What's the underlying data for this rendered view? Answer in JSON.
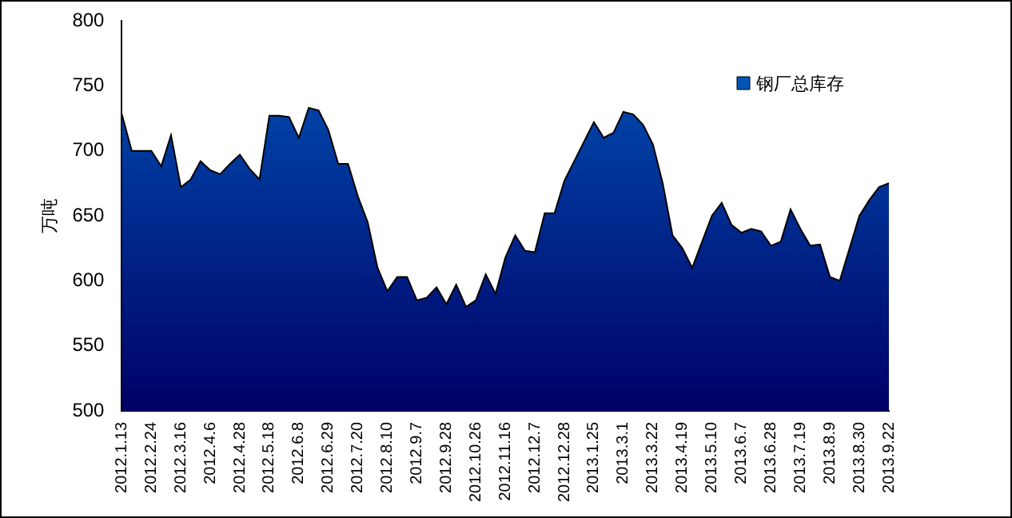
{
  "chart_data": {
    "type": "area",
    "ylabel": "万吨",
    "ylim": [
      500,
      800
    ],
    "yticks": [
      500,
      550,
      600,
      650,
      700,
      750,
      800
    ],
    "grid": false,
    "legend": "top right",
    "categories": [
      "2012.1.13",
      null,
      null,
      "2012.2.24",
      null,
      null,
      "2012.3.16",
      null,
      null,
      "2012.4.6",
      null,
      null,
      "2012.4.28",
      null,
      null,
      "2012.5.18",
      null,
      null,
      "2012.6.8",
      null,
      null,
      "2012.6.29",
      null,
      null,
      "2012.7.20",
      null,
      null,
      "2012.8.10",
      null,
      null,
      "2012.9.7",
      null,
      null,
      "2012.9.28",
      null,
      null,
      "2012.10.26",
      null,
      null,
      "2012.11.16",
      null,
      null,
      "2012.12.7",
      null,
      null,
      "2012.12.28",
      null,
      null,
      "2013.1.25",
      null,
      null,
      "2013.3.1",
      null,
      null,
      "2013.3.22",
      null,
      null,
      "2013.4.19",
      null,
      null,
      "2013.5.10",
      null,
      null,
      "2013.6.7",
      null,
      null,
      "2013.6.28",
      null,
      null,
      "2013.7.19",
      null,
      null,
      "2013.8.9",
      null,
      null,
      "2013.8.30",
      null,
      null,
      "2013.9.22"
    ],
    "series": [
      {
        "name": "钢厂总库存",
        "color": "#0055b8",
        "values": [
          728,
          700,
          700,
          700,
          688,
          712,
          672,
          678,
          692,
          685,
          682,
          690,
          697,
          686,
          678,
          727,
          727,
          726,
          710,
          733,
          731,
          716,
          690,
          690,
          665,
          645,
          610,
          592,
          603,
          603,
          585,
          587,
          595,
          582,
          597,
          580,
          585,
          605,
          590,
          618,
          635,
          623,
          622,
          652,
          652,
          677,
          692,
          707,
          722,
          710,
          714,
          730,
          728,
          720,
          705,
          675,
          635,
          625,
          610,
          630,
          650,
          660,
          643,
          637,
          640,
          638,
          627,
          630,
          655,
          640,
          627,
          628,
          603,
          600,
          625,
          650,
          662,
          672,
          675
        ]
      }
    ]
  }
}
